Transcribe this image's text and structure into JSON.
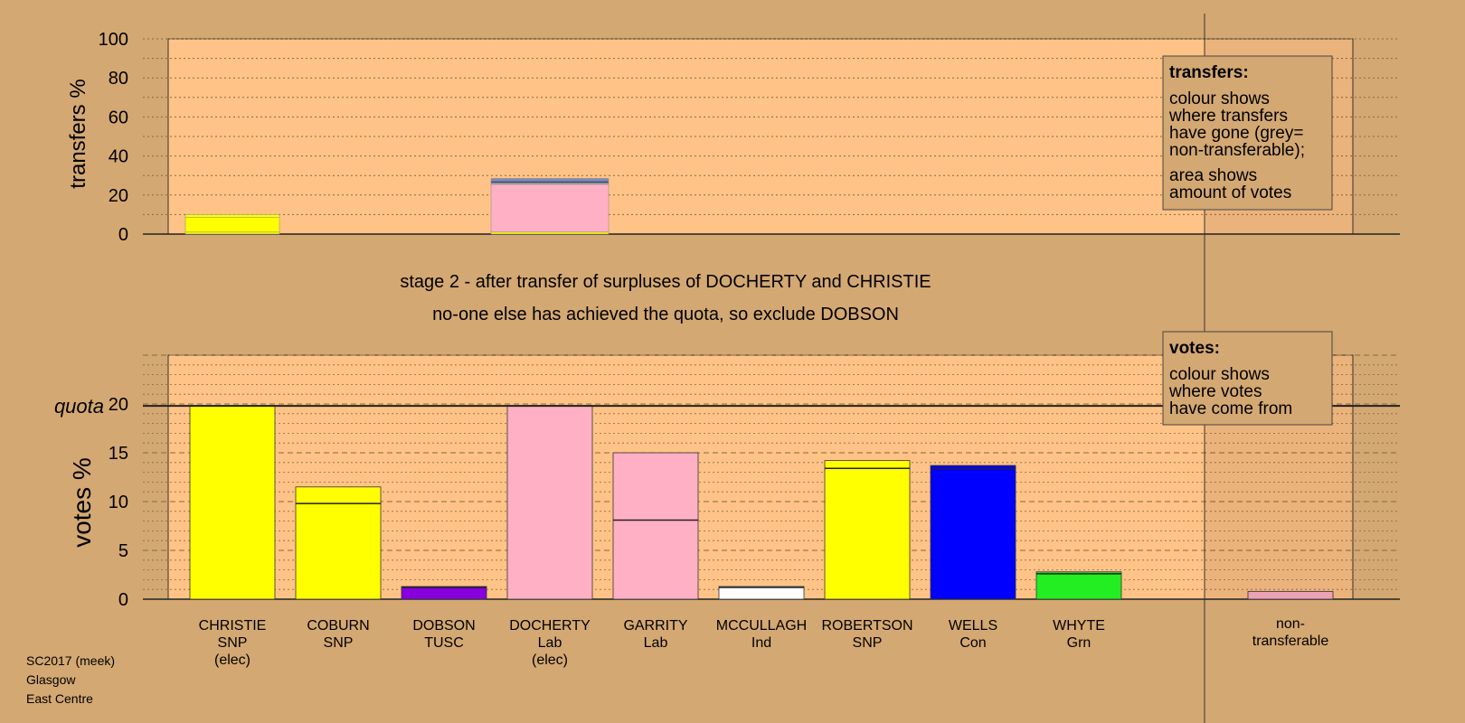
{
  "stage_title": "stage 2 - after transfer of surpluses of DOCHERTY and CHRISTIE",
  "stage_subtitle": "no-one else has achieved the quota, so exclude DOBSON",
  "footer": {
    "election": "SC2017 (meek)",
    "council": "Glasgow",
    "ward": "East Centre"
  },
  "colors": {
    "background": "#d4a872",
    "plot_bg": "#ffc387",
    "SNP": "#ffff00",
    "TUSC": "#8800dd",
    "Lab": "#ffb0c4",
    "Ind": "#ffffff",
    "Con": "#0000ff",
    "Grn": "#22ee22",
    "nontransferable": "#ffb0c4",
    "transfer_grey": "#a0a0a0",
    "transfer_slate": "#7a8ab8",
    "transfer_navy": "#2a3a8a"
  },
  "legend_transfers": {
    "heading": "transfers:",
    "line1": [
      "colour shows",
      "where transfers",
      "have gone (grey=",
      "non-transferable);"
    ],
    "line2": [
      "area shows",
      "amount of votes"
    ]
  },
  "legend_votes": {
    "heading": "votes:",
    "line1": [
      "colour shows",
      "where votes",
      "have come from"
    ]
  },
  "chart_data": [
    {
      "type": "bar",
      "ylabel": "transfers %",
      "ylim": [
        0,
        100
      ],
      "yticks": [
        0,
        20,
        40,
        60,
        80,
        100
      ],
      "grid": true,
      "bars": [
        {
          "category": "CHRISTIE",
          "segments": [
            {
              "value": 1,
              "color": "SNP"
            },
            {
              "value": 7.5,
              "color": "SNP"
            },
            {
              "value": 1.5,
              "color": "SNP"
            }
          ]
        },
        {
          "category": "DOCHERTY",
          "segments": [
            {
              "value": 1,
              "color": "SNP"
            },
            {
              "value": 24.5,
              "color": "Lab"
            },
            {
              "value": 0.8,
              "color": "transfer_grey"
            },
            {
              "value": 0.8,
              "color": "transfer_navy"
            },
            {
              "value": 1.4,
              "color": "transfer_slate"
            }
          ]
        }
      ]
    },
    {
      "type": "bar",
      "ylabel": "votes %",
      "quota_label": "quota",
      "quota": 19.8,
      "ylim": [
        0,
        25
      ],
      "yticks": [
        0,
        5,
        10,
        15,
        20
      ],
      "grid": true,
      "categories": [
        {
          "name": "CHRISTIE",
          "party": "SNP",
          "note": "(elec)"
        },
        {
          "name": "COBURN",
          "party": "SNP",
          "note": ""
        },
        {
          "name": "DOBSON",
          "party": "TUSC",
          "note": ""
        },
        {
          "name": "DOCHERTY",
          "party": "Lab",
          "note": "(elec)"
        },
        {
          "name": "GARRITY",
          "party": "Lab",
          "note": ""
        },
        {
          "name": "MCCULLAGH",
          "party": "Ind",
          "note": ""
        },
        {
          "name": "ROBERTSON",
          "party": "SNP",
          "note": ""
        },
        {
          "name": "WELLS",
          "party": "Con",
          "note": ""
        },
        {
          "name": "WHYTE",
          "party": "Grn",
          "note": ""
        }
      ],
      "nontransferable_label": [
        "non-",
        "transferable"
      ],
      "first_preference": [
        19.8,
        9.8,
        1.2,
        19.8,
        8.1,
        1.2,
        13.4,
        13.4,
        2.6
      ],
      "after_transfers": [
        19.8,
        11.5,
        1.3,
        19.8,
        15.0,
        1.3,
        14.2,
        13.7,
        2.8
      ],
      "nontransferable": 0.8
    }
  ]
}
